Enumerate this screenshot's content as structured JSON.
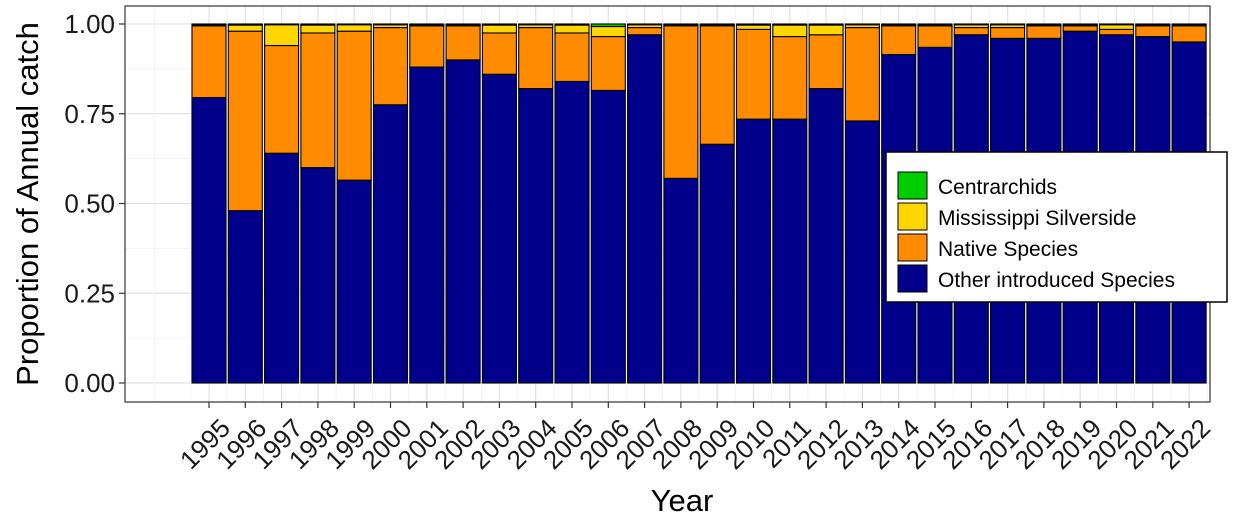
{
  "chart_data": {
    "type": "bar",
    "stacked": true,
    "title": "",
    "xlabel": "Year",
    "ylabel": "Proportion of Annual catch",
    "ylim": [
      0,
      1.0
    ],
    "y_ticks": [
      "0.00",
      "0.25",
      "0.50",
      "0.75",
      "1.00"
    ],
    "grid": true,
    "legend_position": "right",
    "categories": [
      "1995",
      "1996",
      "1997",
      "1998",
      "1999",
      "2000",
      "2001",
      "2002",
      "2003",
      "2004",
      "2005",
      "2006",
      "2007",
      "2008",
      "2009",
      "2010",
      "2011",
      "2012",
      "2013",
      "2014",
      "2015",
      "2016",
      "2017",
      "2018",
      "2019",
      "2020",
      "2021",
      "2022"
    ],
    "series": [
      {
        "name": "Other introduced Species",
        "color": "#00008b",
        "values": [
          0.795,
          0.48,
          0.64,
          0.6,
          0.565,
          0.775,
          0.88,
          0.9,
          0.86,
          0.82,
          0.84,
          0.815,
          0.97,
          0.57,
          0.665,
          0.735,
          0.735,
          0.82,
          0.73,
          0.915,
          0.935,
          0.97,
          0.96,
          0.96,
          0.98,
          0.97,
          0.965,
          0.95
        ]
      },
      {
        "name": "Native Species",
        "color": "#ff8c00",
        "values": [
          0.2,
          0.5,
          0.3,
          0.375,
          0.415,
          0.215,
          0.115,
          0.095,
          0.115,
          0.17,
          0.135,
          0.15,
          0.02,
          0.425,
          0.33,
          0.25,
          0.23,
          0.15,
          0.26,
          0.08,
          0.06,
          0.02,
          0.03,
          0.035,
          0.015,
          0.015,
          0.03,
          0.045
        ]
      },
      {
        "name": "Mississippi Silverside",
        "color": "#ffd700",
        "values": [
          0.003,
          0.017,
          0.058,
          0.022,
          0.018,
          0.008,
          0.003,
          0.003,
          0.022,
          0.008,
          0.022,
          0.028,
          0.008,
          0.003,
          0.003,
          0.012,
          0.032,
          0.027,
          0.008,
          0.003,
          0.003,
          0.008,
          0.008,
          0.003,
          0.003,
          0.013,
          0.003,
          0.003
        ]
      },
      {
        "name": "Centrarchids",
        "color": "#00cd00",
        "values": [
          0.002,
          0.003,
          0.002,
          0.003,
          0.002,
          0.002,
          0.002,
          0.002,
          0.003,
          0.002,
          0.003,
          0.007,
          0.002,
          0.002,
          0.002,
          0.003,
          0.003,
          0.003,
          0.002,
          0.002,
          0.002,
          0.002,
          0.002,
          0.002,
          0.002,
          0.002,
          0.002,
          0.002
        ]
      }
    ],
    "legend_entries": [
      "Centrarchids",
      "Mississippi Silverside",
      "Native Species",
      "Other introduced Species"
    ]
  }
}
